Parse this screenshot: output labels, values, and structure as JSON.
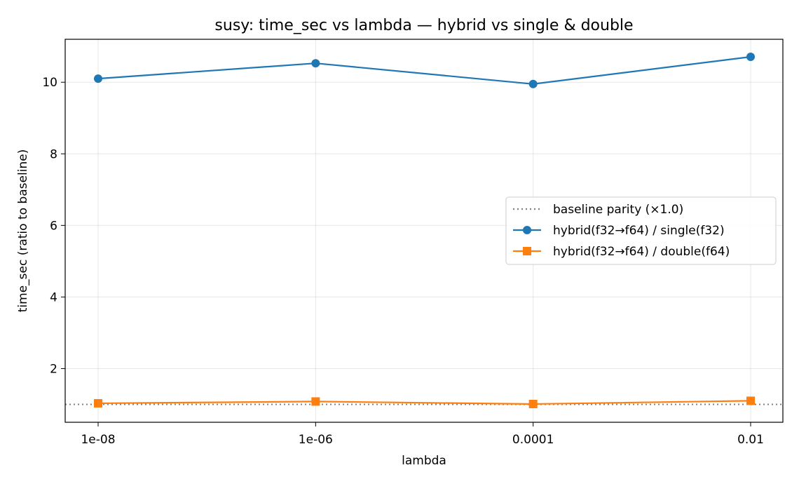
{
  "chart_data": {
    "type": "line",
    "title": "susy: time_sec vs lambda — hybrid vs single & double",
    "xlabel": "lambda",
    "ylabel": "time_sec (ratio to baseline)",
    "categories": [
      "1e-08",
      "1e-06",
      "0.0001",
      "0.01"
    ],
    "ylim": [
      0.5,
      11.2
    ],
    "yticks": [
      2,
      4,
      6,
      8,
      10
    ],
    "grid": true,
    "legend_position": "center-right",
    "baseline": {
      "name": "baseline parity (×1.0)",
      "value": 1.0,
      "style": "dotted",
      "color": "#808080"
    },
    "series": [
      {
        "name": "hybrid(f32→f64) / single(f32)",
        "values": [
          10.1,
          10.53,
          9.95,
          10.71
        ],
        "color": "#1f77b4",
        "marker": "circle"
      },
      {
        "name": "hybrid(f32→f64) / double(f64)",
        "values": [
          1.03,
          1.08,
          1.01,
          1.1
        ],
        "color": "#ff7f0e",
        "marker": "square"
      }
    ]
  }
}
